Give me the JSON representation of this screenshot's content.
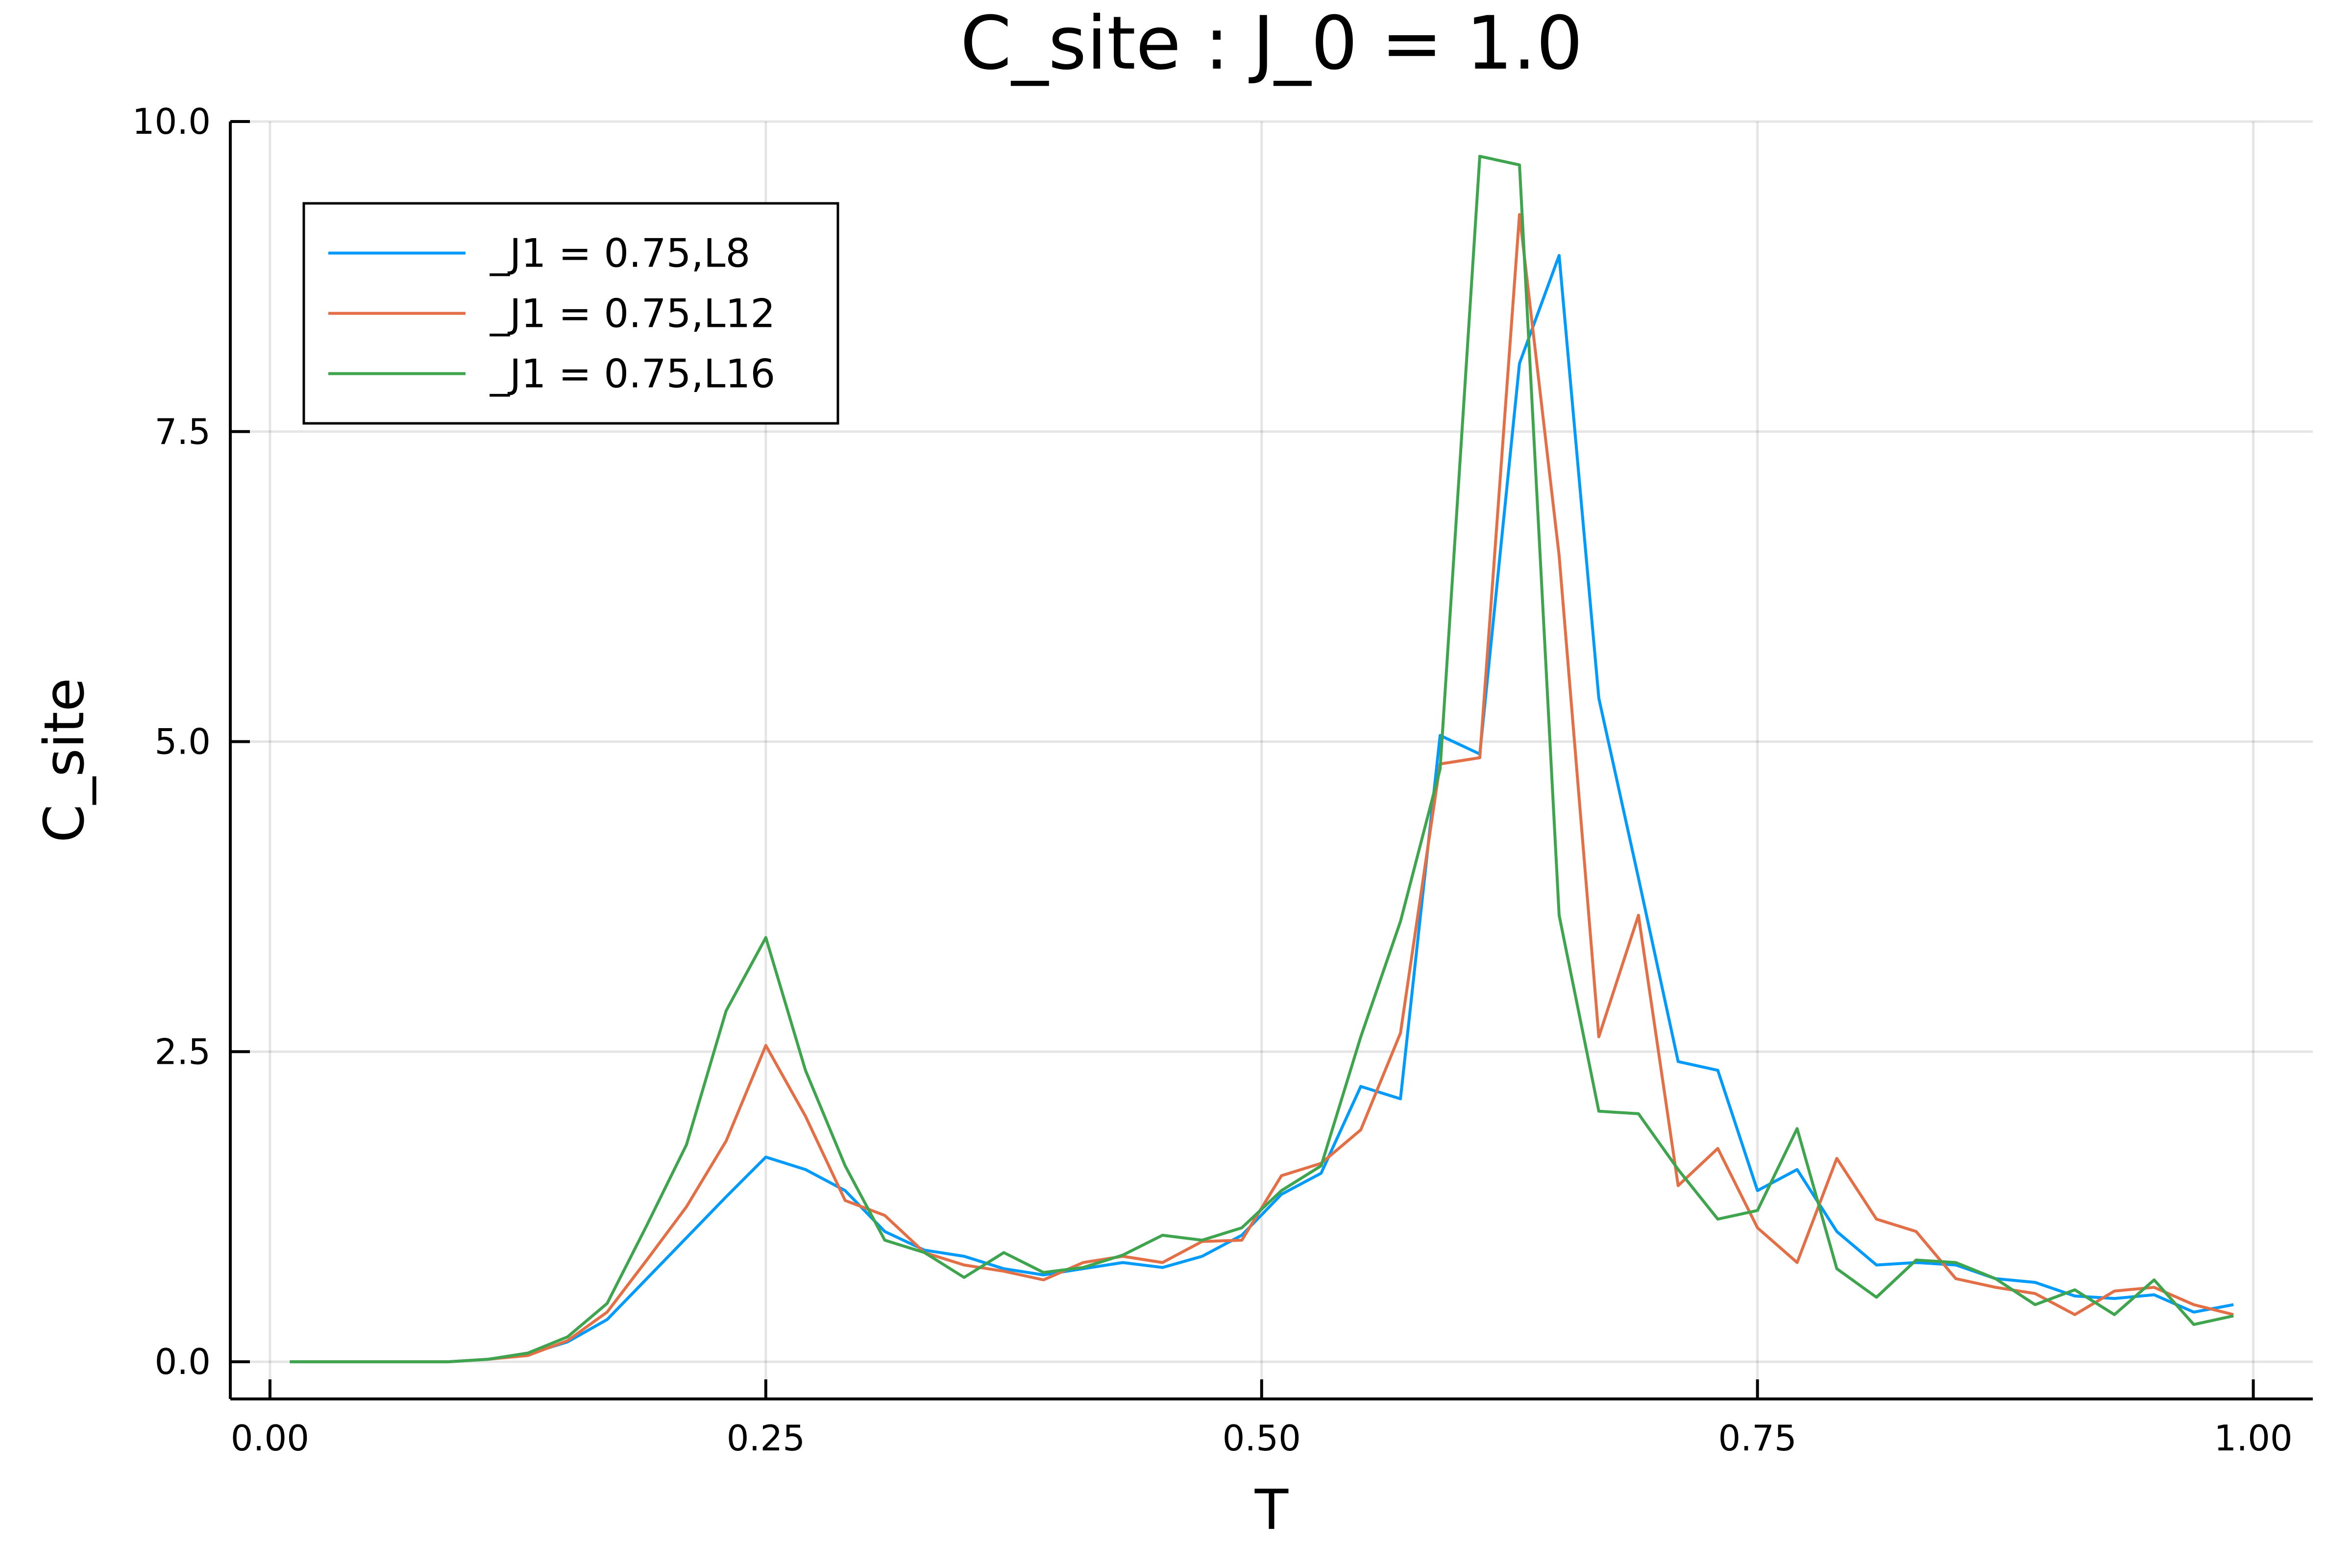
{
  "chart_data": {
    "type": "line",
    "title": "C_site : J_0 = 1.0",
    "xlabel": "T",
    "ylabel": "C_site",
    "xlim": [
      -0.02,
      1.03
    ],
    "ylim": [
      -0.3,
      10.0
    ],
    "xticks": [
      0.0,
      0.25,
      0.5,
      0.75,
      1.0
    ],
    "xtick_labels": [
      "0.00",
      "0.25",
      "0.50",
      "0.75",
      "1.00"
    ],
    "yticks": [
      0.0,
      2.5,
      5.0,
      7.5,
      10.0
    ],
    "ytick_labels": [
      "0.0",
      "2.5",
      "5.0",
      "7.5",
      "10.0"
    ],
    "grid": true,
    "legend_position": "top-left",
    "x": [
      0.01,
      0.03,
      0.05,
      0.07,
      0.09,
      0.11,
      0.13,
      0.15,
      0.17,
      0.19,
      0.21,
      0.23,
      0.25,
      0.27,
      0.29,
      0.31,
      0.33,
      0.35,
      0.37,
      0.39,
      0.41,
      0.43,
      0.45,
      0.47,
      0.49,
      0.51,
      0.53,
      0.55,
      0.57,
      0.59,
      0.61,
      0.63,
      0.65,
      0.67,
      0.69,
      0.71,
      0.73,
      0.75,
      0.77,
      0.79,
      0.81,
      0.83,
      0.85,
      0.87,
      0.89,
      0.91,
      0.93,
      0.95,
      0.97,
      0.99
    ],
    "series": [
      {
        "name": "_J1 = 0.75,L8",
        "color": "#009AFA",
        "values": [
          0.0,
          0.0,
          0.0,
          0.0,
          0.0,
          0.02,
          0.06,
          0.16,
          0.34,
          0.67,
          1.0,
          1.33,
          1.65,
          1.55,
          1.38,
          1.05,
          0.9,
          0.85,
          0.75,
          0.7,
          0.75,
          0.8,
          0.76,
          0.85,
          1.02,
          1.35,
          1.52,
          2.22,
          2.12,
          5.05,
          4.9,
          8.05,
          8.92,
          5.35,
          3.9,
          2.42,
          2.35,
          1.38,
          1.55,
          1.05,
          0.78,
          0.8,
          0.78,
          0.67,
          0.64,
          0.53,
          0.51,
          0.54,
          0.4,
          0.46
        ]
      },
      {
        "name": "_J1 = 0.75,L12",
        "color": "#E36F47",
        "values": [
          0.0,
          0.0,
          0.0,
          0.0,
          0.0,
          0.02,
          0.05,
          0.17,
          0.4,
          0.82,
          1.25,
          1.78,
          2.55,
          1.98,
          1.3,
          1.18,
          0.88,
          0.78,
          0.73,
          0.66,
          0.8,
          0.85,
          0.8,
          0.97,
          0.98,
          1.5,
          1.6,
          1.87,
          2.65,
          4.82,
          4.87,
          9.25,
          6.5,
          2.62,
          3.6,
          1.42,
          1.72,
          1.08,
          0.8,
          1.64,
          1.15,
          1.05,
          0.67,
          0.6,
          0.55,
          0.38,
          0.57,
          0.6,
          0.46,
          0.38
        ]
      },
      {
        "name": "_J1 = 0.75,L16",
        "color": "#3EA44E",
        "values": [
          0.0,
          0.0,
          0.0,
          0.0,
          0.0,
          0.02,
          0.07,
          0.2,
          0.47,
          1.1,
          1.75,
          2.83,
          3.42,
          2.35,
          1.58,
          0.98,
          0.88,
          0.68,
          0.88,
          0.72,
          0.76,
          0.86,
          1.02,
          0.98,
          1.08,
          1.38,
          1.58,
          2.62,
          3.55,
          4.78,
          9.72,
          9.65,
          3.6,
          2.02,
          2.0,
          1.55,
          1.15,
          1.22,
          1.88,
          0.75,
          0.52,
          0.82,
          0.8,
          0.67,
          0.46,
          0.58,
          0.38,
          0.66,
          0.3,
          0.37
        ]
      }
    ]
  }
}
